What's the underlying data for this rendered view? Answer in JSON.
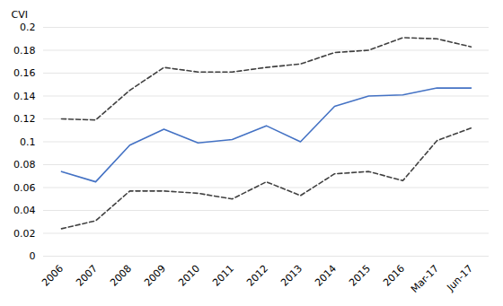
{
  "chart_data": {
    "type": "line",
    "ylabel": "CVI",
    "categories": [
      "2006",
      "2007",
      "2008",
      "2009",
      "2010",
      "2011",
      "2012",
      "2013",
      "2014",
      "2015",
      "2016",
      "Mar-17",
      "Jun-17"
    ],
    "series": [
      {
        "color": "#404040",
        "line_style": "dashed",
        "values": [
          0.12,
          0.119,
          0.145,
          0.165,
          0.161,
          0.161,
          0.165,
          0.168,
          0.178,
          0.18,
          0.191,
          0.19,
          0.183
        ]
      },
      {
        "color": "#404040",
        "line_style": "dashed",
        "values": [
          0.024,
          0.031,
          0.057,
          0.057,
          0.055,
          0.05,
          0.065,
          0.053,
          0.072,
          0.074,
          0.066,
          0.101,
          0.112
        ]
      },
      {
        "color": "#4472C4",
        "line_style": "solid",
        "values": [
          0.074,
          0.065,
          0.097,
          0.111,
          0.099,
          0.102,
          0.114,
          0.1,
          0.131,
          0.14,
          0.141,
          0.147,
          0.147
        ]
      }
    ],
    "ylim": [
      0,
      0.2
    ],
    "yticks": [
      0,
      0.02,
      0.04,
      0.06,
      0.08,
      0.1,
      0.12,
      0.14,
      0.16,
      0.18,
      0.2
    ],
    "grid": true
  }
}
